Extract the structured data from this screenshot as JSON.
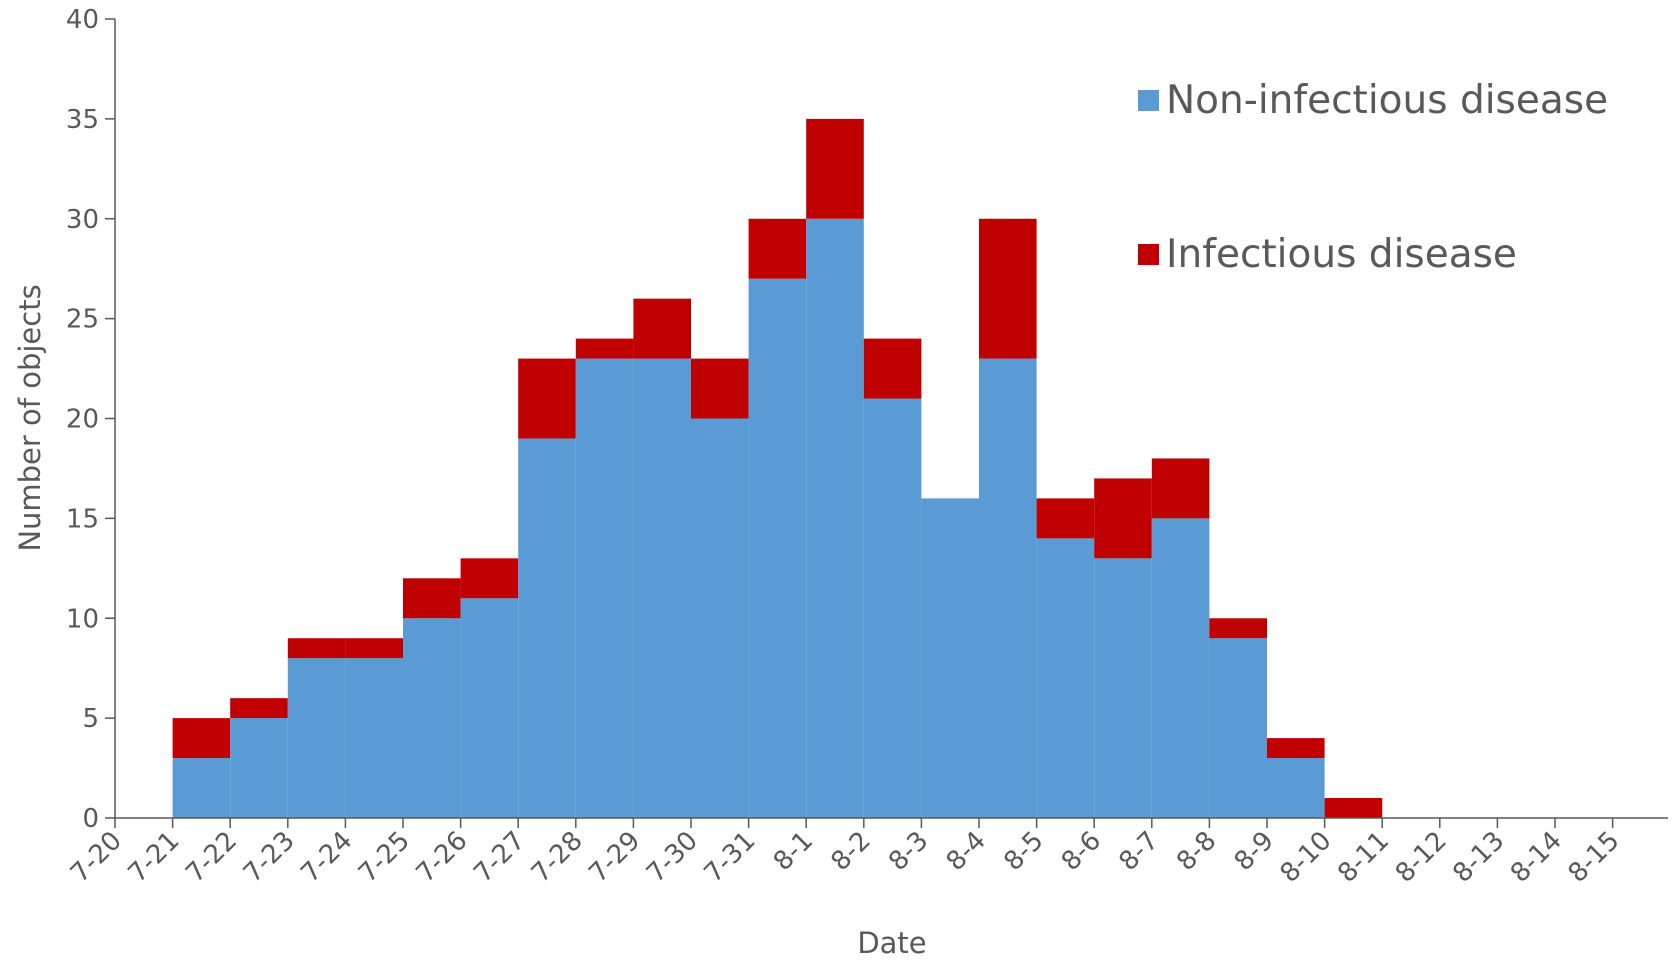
{
  "chart_data": {
    "type": "histogram",
    "xlabel": "Date",
    "ylabel": "Number of objects",
    "bins": [
      "7-20",
      "7-21",
      "7-22",
      "7-23",
      "7-24",
      "7-25",
      "7-26",
      "7-27",
      "7-28",
      "7-29",
      "7-30",
      "7-31",
      "8-1",
      "8-2",
      "8-3",
      "8-4",
      "8-5",
      "8-6",
      "8-7",
      "8-8",
      "8-9",
      "8-10",
      "8-11",
      "8-12",
      "8-13",
      "8-14",
      "8-15"
    ],
    "series": [
      {
        "name": "Non-infectious disease",
        "color": "#5b9bd5",
        "values": [
          0,
          3,
          5,
          8,
          8,
          10,
          11,
          19,
          23,
          23,
          20,
          27,
          30,
          21,
          16,
          23,
          14,
          13,
          15,
          9,
          3,
          0,
          0,
          0,
          0,
          0
        ]
      },
      {
        "name": "Infectious disease",
        "color": "#c00000",
        "values": [
          0,
          2,
          1,
          1,
          1,
          2,
          2,
          4,
          1,
          3,
          3,
          3,
          5,
          3,
          0,
          7,
          2,
          4,
          3,
          1,
          1,
          1,
          0,
          0,
          0,
          0
        ]
      }
    ],
    "stacked": true,
    "ylim": [
      0,
      40
    ],
    "yticks": [
      0,
      5,
      10,
      15,
      20,
      25,
      30,
      35,
      40
    ],
    "legend": "top-right"
  }
}
